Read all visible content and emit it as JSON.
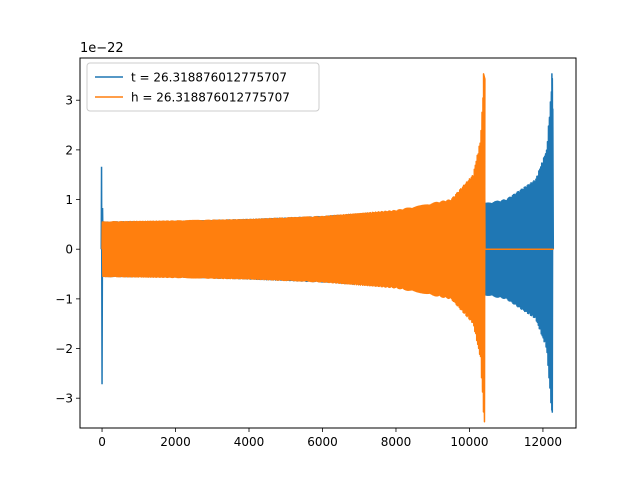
{
  "chart_data": {
    "type": "line",
    "title": "",
    "xlabel": "",
    "ylabel": "",
    "y_offset_label": "1e−22",
    "xlim": [
      -600,
      12900
    ],
    "ylim": [
      -3.6,
      3.85
    ],
    "x_ticks": [
      0,
      2000,
      4000,
      6000,
      8000,
      10000,
      12000
    ],
    "x_tick_labels": [
      "0",
      "2000",
      "4000",
      "6000",
      "8000",
      "10000",
      "12000"
    ],
    "y_ticks": [
      -3,
      -2,
      -1,
      0,
      1,
      2,
      3
    ],
    "y_tick_labels": [
      "−3",
      "−2",
      "−1",
      "0",
      "1",
      "2",
      "3"
    ],
    "grid": false,
    "legend_position": "top-left",
    "series": [
      {
        "name": "t = 26.318876012775707",
        "color": "#1f77b4",
        "signal": "chirp",
        "x_start": 0,
        "x_end": 12290,
        "amplitude_envelope": [
          [
            0,
            0.55
          ],
          [
            2000,
            0.56
          ],
          [
            4000,
            0.6
          ],
          [
            6000,
            0.66
          ],
          [
            8000,
            0.76
          ],
          [
            10000,
            0.86
          ],
          [
            11000,
            1.0
          ],
          [
            11800,
            1.4
          ],
          [
            12100,
            2.0
          ],
          [
            12260,
            3.5
          ]
        ],
        "initial_spike": {
          "x": 0,
          "min": -2.72,
          "max": 1.66
        },
        "merger_peak": {
          "x": 12260,
          "min": -3.28,
          "max": 3.53
        }
      },
      {
        "name": "h = 26.318876012775707",
        "color": "#ff7f0e",
        "signal": "chirp",
        "x_start": 0,
        "x_end": 12290,
        "chirp_end": 10420,
        "amplitude_envelope": [
          [
            0,
            0.55
          ],
          [
            2000,
            0.57
          ],
          [
            4000,
            0.6
          ],
          [
            6000,
            0.66
          ],
          [
            8000,
            0.78
          ],
          [
            9500,
            1.0
          ],
          [
            10100,
            1.5
          ],
          [
            10300,
            2.2
          ],
          [
            10400,
            3.53
          ]
        ],
        "merger_peak": {
          "x": 10400,
          "min": -3.28,
          "max": 3.53
        },
        "ringdown_value": 0.0
      }
    ]
  }
}
